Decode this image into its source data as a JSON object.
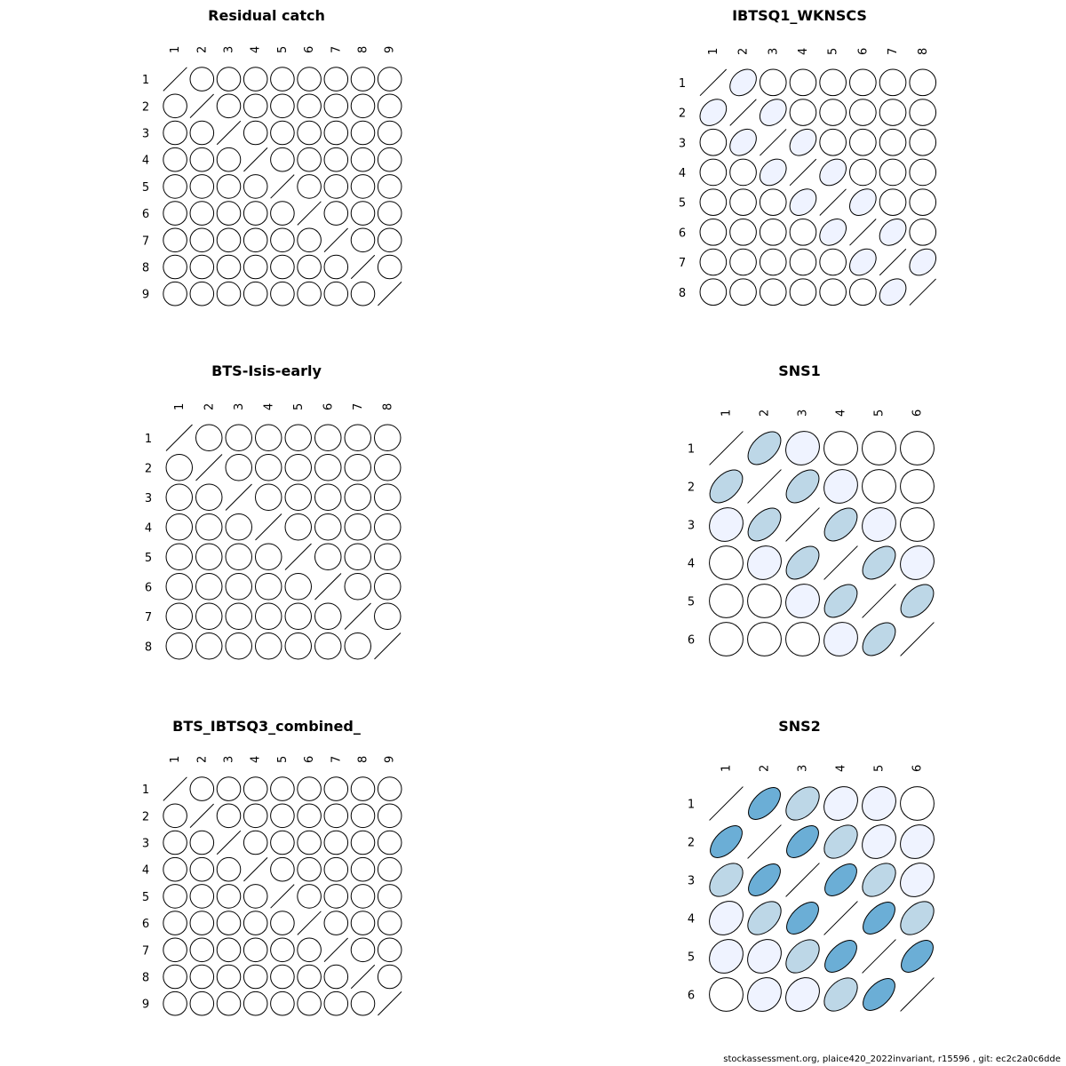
{
  "footer": "stockassessment.org, plaice420_2022invariant, r15596 , git: ec2c2a0c6dde",
  "palette": {
    "stroke": "#000000",
    "levels": [
      "#ffffff",
      "#eff3ff",
      "#bdd7e7",
      "#6baed6",
      "#3182bd"
    ]
  },
  "chart_data": [
    {
      "type": "heatmap",
      "subtype": "correlation-ellipse",
      "title": "Residual catch",
      "labels": [
        "1",
        "2",
        "3",
        "4",
        "5",
        "6",
        "7",
        "8",
        "9"
      ],
      "matrix": [
        [
          1,
          0,
          0,
          0,
          0,
          0,
          0,
          0,
          0
        ],
        [
          0,
          1,
          0,
          0,
          0,
          0,
          0,
          0,
          0
        ],
        [
          0,
          0,
          1,
          0,
          0,
          0,
          0,
          0,
          0
        ],
        [
          0,
          0,
          0,
          1,
          0,
          0,
          0,
          0,
          0
        ],
        [
          0,
          0,
          0,
          0,
          1,
          0,
          0,
          0,
          0
        ],
        [
          0,
          0,
          0,
          0,
          0,
          1,
          0,
          0,
          0
        ],
        [
          0,
          0,
          0,
          0,
          0,
          0,
          1,
          0,
          0
        ],
        [
          0,
          0,
          0,
          0,
          0,
          0,
          0,
          1,
          0
        ],
        [
          0,
          0,
          0,
          0,
          0,
          0,
          0,
          0,
          1
        ]
      ]
    },
    {
      "type": "heatmap",
      "subtype": "correlation-ellipse",
      "title": "IBTSQ1_WKNSCS",
      "labels": [
        "1",
        "2",
        "3",
        "4",
        "5",
        "6",
        "7",
        "8"
      ],
      "matrix": [
        [
          1,
          0.3,
          0,
          0,
          0,
          0,
          0,
          0
        ],
        [
          0.3,
          1,
          0.3,
          0,
          0,
          0,
          0,
          0
        ],
        [
          0,
          0.3,
          1,
          0.3,
          0,
          0,
          0,
          0
        ],
        [
          0,
          0,
          0.3,
          1,
          0.3,
          0,
          0,
          0
        ],
        [
          0,
          0,
          0,
          0.3,
          1,
          0.3,
          0,
          0
        ],
        [
          0,
          0,
          0,
          0,
          0.3,
          1,
          0.3,
          0
        ],
        [
          0,
          0,
          0,
          0,
          0,
          0.3,
          1,
          0.3
        ],
        [
          0,
          0,
          0,
          0,
          0,
          0,
          0.3,
          1
        ]
      ]
    },
    {
      "type": "heatmap",
      "subtype": "correlation-ellipse",
      "title": "BTS-Isis-early",
      "labels": [
        "1",
        "2",
        "3",
        "4",
        "5",
        "6",
        "7",
        "8"
      ],
      "matrix": [
        [
          1,
          0,
          0,
          0,
          0,
          0,
          0,
          0
        ],
        [
          0,
          1,
          0,
          0,
          0,
          0,
          0,
          0
        ],
        [
          0,
          0,
          1,
          0,
          0,
          0,
          0,
          0
        ],
        [
          0,
          0,
          0,
          1,
          0,
          0,
          0,
          0
        ],
        [
          0,
          0,
          0,
          0,
          1,
          0,
          0,
          0
        ],
        [
          0,
          0,
          0,
          0,
          0,
          1,
          0,
          0
        ],
        [
          0,
          0,
          0,
          0,
          0,
          0,
          1,
          0
        ],
        [
          0,
          0,
          0,
          0,
          0,
          0,
          0,
          1
        ]
      ]
    },
    {
      "type": "heatmap",
      "subtype": "correlation-ellipse",
      "title": "SNS1",
      "labels": [
        "1",
        "2",
        "3",
        "4",
        "5",
        "6"
      ],
      "matrix": [
        [
          1,
          0.5,
          0.1,
          0,
          0,
          0
        ],
        [
          0.5,
          1,
          0.5,
          0.1,
          0,
          0
        ],
        [
          0.1,
          0.5,
          1,
          0.5,
          0.1,
          0
        ],
        [
          0,
          0.1,
          0.5,
          1,
          0.5,
          0.1
        ],
        [
          0,
          0,
          0.1,
          0.5,
          1,
          0.5
        ],
        [
          0,
          0,
          0,
          0.1,
          0.5,
          1
        ]
      ]
    },
    {
      "type": "heatmap",
      "subtype": "correlation-ellipse",
      "title": "BTS_IBTSQ3_combined_",
      "labels": [
        "1",
        "2",
        "3",
        "4",
        "5",
        "6",
        "7",
        "8",
        "9"
      ],
      "matrix": [
        [
          1,
          0,
          0,
          0,
          0,
          0,
          0,
          0,
          0
        ],
        [
          0,
          1,
          0,
          0,
          0,
          0,
          0,
          0,
          0
        ],
        [
          0,
          0,
          1,
          0,
          0,
          0,
          0,
          0,
          0
        ],
        [
          0,
          0,
          0,
          1,
          0,
          0,
          0,
          0,
          0
        ],
        [
          0,
          0,
          0,
          0,
          1,
          0,
          0,
          0,
          0
        ],
        [
          0,
          0,
          0,
          0,
          0,
          1,
          0,
          0,
          0
        ],
        [
          0,
          0,
          0,
          0,
          0,
          0,
          1,
          0,
          0
        ],
        [
          0,
          0,
          0,
          0,
          0,
          0,
          0,
          1,
          0
        ],
        [
          0,
          0,
          0,
          0,
          0,
          0,
          0,
          0,
          1
        ]
      ]
    },
    {
      "type": "heatmap",
      "subtype": "correlation-ellipse",
      "title": "SNS2",
      "labels": [
        "1",
        "2",
        "3",
        "4",
        "5",
        "6"
      ],
      "matrix": [
        [
          1,
          0.6,
          0.45,
          0.2,
          0.15,
          0
        ],
        [
          0.6,
          1,
          0.6,
          0.45,
          0.2,
          0.15
        ],
        [
          0.45,
          0.6,
          1,
          0.6,
          0.45,
          0.2
        ],
        [
          0.2,
          0.45,
          0.6,
          1,
          0.6,
          0.45
        ],
        [
          0.15,
          0.2,
          0.45,
          0.6,
          1,
          0.6
        ],
        [
          0,
          0.15,
          0.2,
          0.45,
          0.6,
          1
        ]
      ]
    }
  ]
}
